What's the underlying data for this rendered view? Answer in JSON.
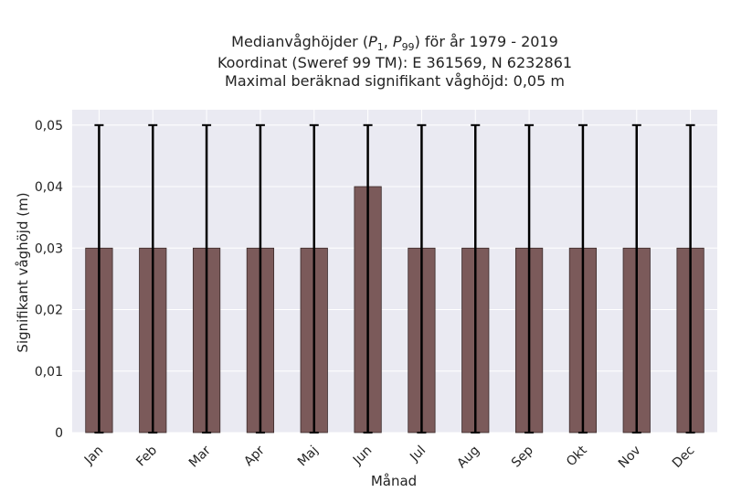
{
  "chart_data": {
    "type": "bar",
    "title_lines": [
      "Medianvåghöjder (P1, P99) för år 1979 - 2019",
      "Koordinat (Sweref 99 TM): E 361569, N 6232861",
      "Maximal beräknad signifikant våghöjd: 0,05 m"
    ],
    "xlabel": "Månad",
    "ylabel": "Signifikant våghöjd (m)",
    "categories": [
      "Jan",
      "Feb",
      "Mar",
      "Apr",
      "Maj",
      "Jun",
      "Jul",
      "Aug",
      "Sep",
      "Okt",
      "Nov",
      "Dec"
    ],
    "series": [
      {
        "values": [
          0.03,
          0.03,
          0.03,
          0.03,
          0.03,
          0.04,
          0.03,
          0.03,
          0.03,
          0.03,
          0.03,
          0.03
        ],
        "error_low": [
          0,
          0,
          0,
          0,
          0,
          0,
          0,
          0,
          0,
          0,
          0,
          0
        ],
        "error_high": [
          0.05,
          0.05,
          0.05,
          0.05,
          0.05,
          0.05,
          0.05,
          0.05,
          0.05,
          0.05,
          0.05,
          0.05
        ]
      }
    ],
    "ylim": [
      0,
      0.0525
    ],
    "yticks": [
      0,
      0.01,
      0.02,
      0.03,
      0.04,
      0.05
    ],
    "ytick_labels": [
      "0",
      "0,01",
      "0,02",
      "0,03",
      "0,04",
      "0,05"
    ],
    "grid": true,
    "colors": {
      "bar": "#7b5a5a",
      "bar_edge": "#3a2a2a",
      "plot_bg": "#eaeaf2",
      "grid": "#ffffff",
      "error": "#000000"
    }
  }
}
